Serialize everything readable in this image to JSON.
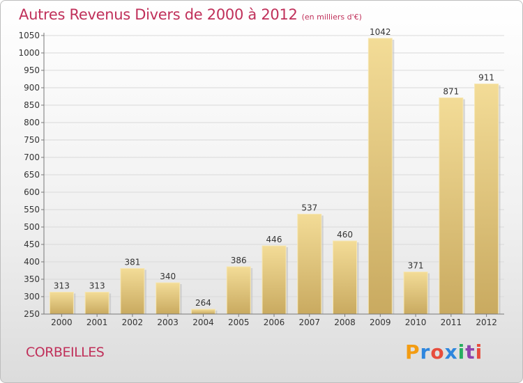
{
  "chart_data": {
    "type": "bar",
    "title": "Autres Revenus Divers de 2000 à 2012",
    "subtitle": "(en milliers d'€)",
    "categories": [
      "2000",
      "2001",
      "2002",
      "2003",
      "2004",
      "2005",
      "2006",
      "2007",
      "2008",
      "2009",
      "2010",
      "2011",
      "2012"
    ],
    "values": [
      313,
      313,
      381,
      340,
      264,
      386,
      446,
      537,
      460,
      1042,
      371,
      871,
      911
    ],
    "ylim": [
      250,
      1050
    ],
    "yticks": [
      250,
      300,
      350,
      400,
      450,
      500,
      550,
      600,
      650,
      700,
      750,
      800,
      850,
      900,
      950,
      1000,
      1050
    ],
    "grid": true,
    "bar_color": "#e2c57a"
  },
  "footer": {
    "city": "CORBEILLES",
    "logo": "Proxiti"
  }
}
